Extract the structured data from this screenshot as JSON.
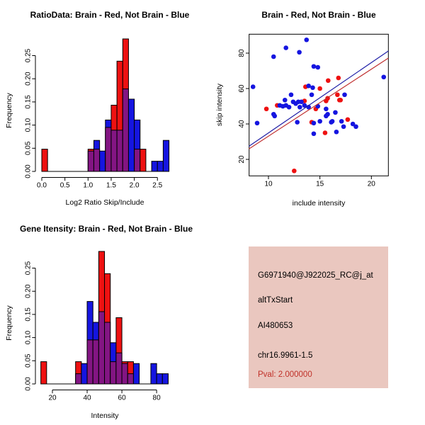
{
  "figure_background": "#ffffff",
  "info_box": {
    "bg_color": "#EAC7BF",
    "text_color": "#000000",
    "lines": [
      "G6971940@J922025_RC@j_at",
      "altTxStart",
      "AI480653",
      "chr16.9961-1.5"
    ],
    "pval_line": "Pval: 2.000000",
    "pval_color": "#C03028"
  },
  "chart_data": [
    {
      "type": "bar",
      "subtype": "overlaid_histogram",
      "title": "RatioData: Brain - Red, Not Brain - Blue",
      "xlabel": "Log2 Ratio Skip/Include",
      "ylabel": "Frequency",
      "xlim": [
        -0.14,
        2.85
      ],
      "ylim": [
        0,
        0.3
      ],
      "grid": false,
      "x_ticks": [
        0,
        0.5,
        1,
        1.5,
        2,
        2.5
      ],
      "x_tick_labels": [
        "0.0",
        "0.5",
        "1.0",
        "1.5",
        "2.0",
        "2.5"
      ],
      "y_ticks": [
        0,
        0.05,
        0.1,
        0.15,
        0.2,
        0.25
      ],
      "y_tick_labels": [
        "0.00",
        "0.05",
        "0.10",
        "0.15",
        "0.20",
        "0.25"
      ],
      "bin_width": 0.125,
      "overlap_color": "#831583",
      "series": [
        {
          "name": "Brain",
          "color": "#EE1111",
          "bins": [
            [
              0,
              0.048
            ],
            [
              1,
              0.048
            ],
            [
              1.125,
              0.048
            ],
            [
              1.375,
              0.095
            ],
            [
              1.5,
              0.143
            ],
            [
              1.625,
              0.238
            ],
            [
              1.75,
              0.286
            ],
            [
              2,
              0.048
            ],
            [
              2.125,
              0.048
            ]
          ]
        },
        {
          "name": "Not Brain",
          "color": "#1515E0",
          "bins": [
            [
              1,
              0.044
            ],
            [
              1.125,
              0.067
            ],
            [
              1.25,
              0.044
            ],
            [
              1.375,
              0.111
            ],
            [
              1.5,
              0.089
            ],
            [
              1.625,
              0.089
            ],
            [
              1.75,
              0.178
            ],
            [
              1.875,
              0.156
            ],
            [
              2,
              0.111
            ],
            [
              2.375,
              0.022
            ],
            [
              2.5,
              0.022
            ],
            [
              2.625,
              0.067
            ]
          ]
        }
      ]
    },
    {
      "type": "scatter",
      "title": "Brain - Red, Not Brain - Blue",
      "xlabel": "include intensity",
      "ylabel": "skip intensity",
      "xlim": [
        8.1,
        21.65
      ],
      "ylim": [
        10.7,
        90.7
      ],
      "grid": false,
      "x_ticks": [
        10,
        15,
        20
      ],
      "x_tick_labels": [
        "10",
        "15",
        "20"
      ],
      "y_ticks": [
        20,
        40,
        60,
        80
      ],
      "y_tick_labels": [
        "20",
        "40",
        "60",
        "80"
      ],
      "point_radius": 3.3,
      "series": [
        {
          "name": "Brain",
          "color": "#EE1111",
          "points": [
            [
              12.5,
              13.5
            ],
            [
              9.8,
              48.5
            ],
            [
              10.85,
              50.5
            ],
            [
              13.5,
              53
            ],
            [
              13.6,
              61
            ],
            [
              15.0,
              60
            ],
            [
              15.8,
              64.5
            ],
            [
              16.8,
              66
            ],
            [
              16.7,
              56.5
            ],
            [
              16.9,
              53.5
            ],
            [
              15.6,
              53
            ],
            [
              14.6,
              48.5
            ],
            [
              15.75,
              54.5
            ],
            [
              17.7,
              42.5
            ],
            [
              15.5,
              35
            ],
            [
              14.2,
              41
            ],
            [
              17.0,
              53.5
            ]
          ]
        },
        {
          "name": "Not Brain",
          "color": "#1515E0",
          "points": [
            [
              13.7,
              87.5
            ],
            [
              11.7,
              83
            ],
            [
              13.0,
              80.5
            ],
            [
              10.5,
              78
            ],
            [
              14.4,
              72.5
            ],
            [
              14.8,
              72
            ],
            [
              21.2,
              66.5
            ],
            [
              8.5,
              61
            ],
            [
              13.9,
              61.5
            ],
            [
              14.3,
              60.5
            ],
            [
              12.2,
              56.5
            ],
            [
              14.2,
              56.5
            ],
            [
              17.4,
              56.5
            ],
            [
              11.6,
              53.5
            ],
            [
              12.4,
              52.5
            ],
            [
              12.9,
              52.5
            ],
            [
              13.2,
              52.5
            ],
            [
              12.65,
              51.5
            ],
            [
              11.1,
              50.5
            ],
            [
              11.7,
              50.5
            ],
            [
              11.4,
              50
            ],
            [
              12.0,
              49.5
            ],
            [
              13.5,
              50.5
            ],
            [
              13.05,
              49.5
            ],
            [
              13.9,
              49.5
            ],
            [
              14.8,
              50
            ],
            [
              15.6,
              48.5
            ],
            [
              16.5,
              46.5
            ],
            [
              15.75,
              45.5
            ],
            [
              15.6,
              44.5
            ],
            [
              10.6,
              44.5
            ],
            [
              10.5,
              45.5
            ],
            [
              12.8,
              41
            ],
            [
              14.4,
              40.5
            ],
            [
              15.0,
              41.5
            ],
            [
              16.1,
              41
            ],
            [
              16.2,
              41.5
            ],
            [
              17.1,
              41.5
            ],
            [
              17.3,
              38.5
            ],
            [
              14.4,
              34.5
            ],
            [
              16.6,
              35.5
            ],
            [
              8.9,
              40.5
            ],
            [
              18.2,
              40
            ],
            [
              18.5,
              38.5
            ]
          ]
        }
      ],
      "fit_lines": [
        {
          "name": "not_brain_fit",
          "color": "#2020A8",
          "endpoints": [
            [
              8.1,
              27.4
            ],
            [
              21.65,
              81.2
            ]
          ]
        },
        {
          "name": "brain_fit",
          "color": "#C03030",
          "endpoints": [
            [
              8.1,
              25.9
            ],
            [
              21.65,
              77.2
            ]
          ]
        }
      ]
    },
    {
      "type": "bar",
      "subtype": "overlaid_histogram",
      "title": "Gene Itensity: Brain - Red, Not Brain - Blue",
      "xlabel": "Intensity",
      "ylabel": "Frequency",
      "xlim": [
        10,
        90
      ],
      "ylim": [
        0,
        0.3
      ],
      "grid": false,
      "x_ticks": [
        20,
        40,
        60,
        80
      ],
      "x_tick_labels": [
        "20",
        "40",
        "60",
        "80"
      ],
      "y_ticks": [
        0,
        0.05,
        0.1,
        0.15,
        0.2,
        0.25
      ],
      "y_tick_labels": [
        "0.00",
        "0.05",
        "0.10",
        "0.15",
        "0.20",
        "0.25"
      ],
      "bin_width": 3.333,
      "overlap_color": "#831583",
      "series": [
        {
          "name": "Brain",
          "color": "#EE1111",
          "bins": [
            [
              13.333,
              0.048
            ],
            [
              33.333,
              0.048
            ],
            [
              40,
              0.095
            ],
            [
              43.333,
              0.095
            ],
            [
              46.667,
              0.286
            ],
            [
              50,
              0.238
            ],
            [
              53.333,
              0.048
            ],
            [
              56.667,
              0.143
            ],
            [
              60,
              0.048
            ],
            [
              63.333,
              0.048
            ]
          ]
        },
        {
          "name": "Not Brain",
          "color": "#1515E0",
          "bins": [
            [
              33.333,
              0.022
            ],
            [
              36.667,
              0.044
            ],
            [
              40,
              0.178
            ],
            [
              43.333,
              0.133
            ],
            [
              46.667,
              0.156
            ],
            [
              50,
              0.133
            ],
            [
              53.333,
              0.089
            ],
            [
              56.667,
              0.067
            ],
            [
              60,
              0.044
            ],
            [
              63.333,
              0.022
            ],
            [
              66.667,
              0.044
            ],
            [
              76.667,
              0.044
            ],
            [
              80,
              0.022
            ],
            [
              83.333,
              0.022
            ]
          ]
        }
      ]
    }
  ]
}
